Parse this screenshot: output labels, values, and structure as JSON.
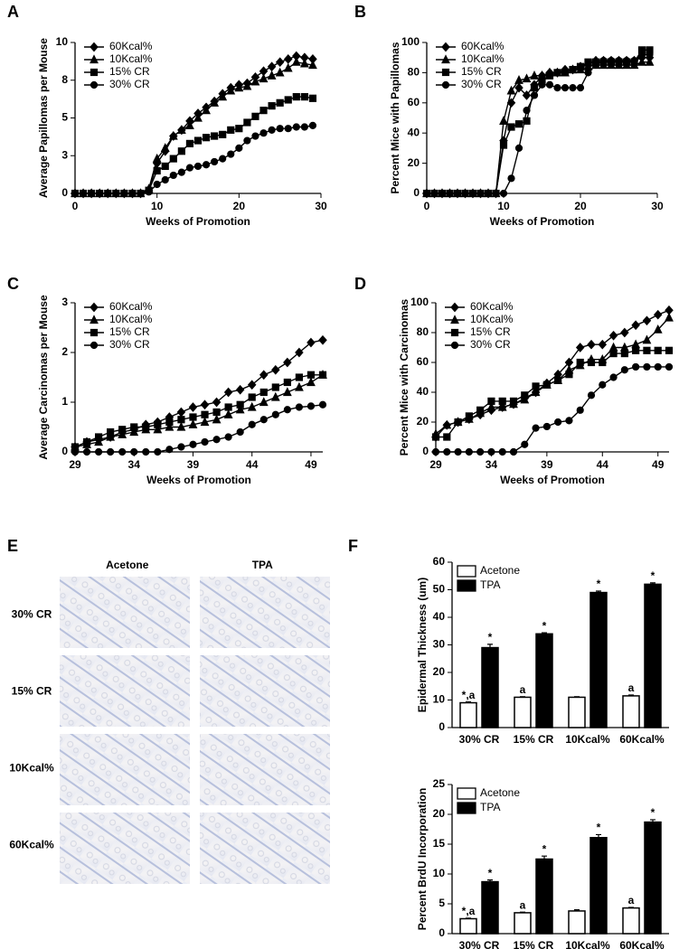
{
  "chart_data": [
    {
      "type": "line",
      "panel": "A",
      "x_label": "Weeks of Promotion",
      "y_label": "Average Papillomas per Mouse",
      "x": [
        0,
        1,
        2,
        3,
        4,
        5,
        6,
        7,
        8,
        9,
        10,
        11,
        12,
        13,
        14,
        15,
        16,
        17,
        18,
        19,
        20,
        21,
        22,
        23,
        24,
        25,
        26,
        27,
        28,
        29
      ],
      "xlim": [
        0,
        30
      ],
      "xticks": [
        0,
        10,
        20,
        30
      ],
      "ylim": [
        0,
        10
      ],
      "yticks": [
        0,
        {
          "value": 2.5,
          "label": "3"
        },
        5,
        {
          "value": 7.5,
          "label": "8"
        },
        10
      ],
      "series": [
        {
          "name": "60Kcal%",
          "color": "#000000",
          "marker": "diamond",
          "values": [
            0,
            0,
            0,
            0,
            0,
            0,
            0,
            0,
            0,
            0.2,
            2.0,
            2.8,
            3.8,
            4.2,
            4.8,
            5.3,
            5.7,
            6.1,
            6.6,
            7.0,
            7.2,
            7.3,
            7.7,
            8.1,
            8.4,
            8.7,
            8.9,
            9.1,
            9.0,
            8.9
          ]
        },
        {
          "name": "10Kcal%",
          "color": "#000000",
          "marker": "triangle",
          "values": [
            0,
            0,
            0,
            0,
            0,
            0,
            0,
            0,
            0,
            0.3,
            2.3,
            3.0,
            3.8,
            4.2,
            4.5,
            5.0,
            5.5,
            6.0,
            6.4,
            6.8,
            7.0,
            7.1,
            7.4,
            7.6,
            7.8,
            8.0,
            8.3,
            8.7,
            8.6,
            8.5
          ]
        },
        {
          "name": "15% CR",
          "color": "#000000",
          "marker": "square",
          "values": [
            0,
            0,
            0,
            0,
            0,
            0,
            0,
            0,
            0,
            0.2,
            1.5,
            1.8,
            2.3,
            2.8,
            3.3,
            3.5,
            3.7,
            3.8,
            3.9,
            4.2,
            4.3,
            4.7,
            5.1,
            5.5,
            5.8,
            6.0,
            6.2,
            6.4,
            6.4,
            6.3
          ]
        },
        {
          "name": "30% CR",
          "color": "#000000",
          "marker": "circle",
          "values": [
            0,
            0,
            0,
            0,
            0,
            0,
            0,
            0,
            0,
            0.1,
            0.6,
            0.9,
            1.2,
            1.4,
            1.7,
            1.8,
            1.9,
            2.1,
            2.3,
            2.6,
            3.0,
            3.5,
            3.8,
            4.0,
            4.2,
            4.3,
            4.3,
            4.4,
            4.4,
            4.5
          ]
        }
      ]
    },
    {
      "type": "line",
      "panel": "B",
      "x_label": "Weeks of Promotion",
      "y_label": "Percent Mice with Papillomas",
      "x": [
        0,
        1,
        2,
        3,
        4,
        5,
        6,
        7,
        8,
        9,
        10,
        11,
        12,
        13,
        14,
        15,
        16,
        17,
        18,
        19,
        20,
        21,
        22,
        23,
        24,
        25,
        26,
        27,
        28,
        29
      ],
      "xlim": [
        0,
        30
      ],
      "xticks": [
        0,
        10,
        20,
        30
      ],
      "ylim": [
        0,
        100
      ],
      "yticks": [
        0,
        20,
        40,
        60,
        80,
        100
      ],
      "series": [
        {
          "name": "60Kcal%",
          "color": "#000000",
          "marker": "diamond",
          "values": [
            0,
            0,
            0,
            0,
            0,
            0,
            0,
            0,
            0,
            0,
            35,
            60,
            70,
            65,
            72,
            78,
            80,
            80,
            82,
            82,
            84,
            85,
            88,
            88,
            88,
            88,
            88,
            88,
            90,
            90
          ]
        },
        {
          "name": "10Kcal%",
          "color": "#000000",
          "marker": "triangle",
          "values": [
            0,
            0,
            0,
            0,
            0,
            0,
            0,
            0,
            0,
            0,
            48,
            68,
            75,
            76,
            78,
            78,
            80,
            80,
            80,
            82,
            82,
            84,
            85,
            85,
            85,
            85,
            85,
            85,
            87,
            87
          ]
        },
        {
          "name": "15% CR",
          "color": "#000000",
          "marker": "square",
          "values": [
            0,
            0,
            0,
            0,
            0,
            0,
            0,
            0,
            0,
            0,
            32,
            44,
            46,
            48,
            70,
            75,
            78,
            80,
            80,
            82,
            84,
            87,
            87,
            87,
            87,
            87,
            87,
            87,
            95,
            95
          ]
        },
        {
          "name": "30% CR",
          "color": "#000000",
          "marker": "circle",
          "values": [
            0,
            0,
            0,
            0,
            0,
            0,
            0,
            0,
            0,
            0,
            0,
            10,
            30,
            55,
            65,
            72,
            72,
            70,
            70,
            70,
            70,
            80,
            85,
            88,
            88,
            88,
            88,
            88,
            92,
            92
          ]
        }
      ]
    },
    {
      "type": "line",
      "panel": "C",
      "x_label": "Weeks of Promotion",
      "y_label": "Average Carcinomas per Mouse",
      "x": [
        29,
        30,
        31,
        32,
        33,
        34,
        35,
        36,
        37,
        38,
        39,
        40,
        41,
        42,
        43,
        44,
        45,
        46,
        47,
        48,
        49,
        50
      ],
      "xlim": [
        29,
        50
      ],
      "xticks": [
        29,
        34,
        39,
        44,
        49
      ],
      "ylim": [
        0,
        3
      ],
      "yticks": [
        0,
        1,
        2,
        3
      ],
      "series": [
        {
          "name": "60Kcal%",
          "color": "#000000",
          "marker": "diamond",
          "values": [
            0.1,
            0.2,
            0.25,
            0.3,
            0.4,
            0.45,
            0.55,
            0.6,
            0.7,
            0.8,
            0.9,
            0.95,
            1.0,
            1.2,
            1.25,
            1.35,
            1.55,
            1.65,
            1.8,
            2.0,
            2.2,
            2.25
          ]
        },
        {
          "name": "10Kcal%",
          "color": "#000000",
          "marker": "triangle",
          "values": [
            0.1,
            0.15,
            0.2,
            0.3,
            0.35,
            0.4,
            0.45,
            0.45,
            0.5,
            0.5,
            0.55,
            0.6,
            0.65,
            0.75,
            0.85,
            0.9,
            1.0,
            1.1,
            1.2,
            1.3,
            1.4,
            1.55
          ]
        },
        {
          "name": "15% CR",
          "color": "#000000",
          "marker": "square",
          "values": [
            0.1,
            0.2,
            0.3,
            0.4,
            0.45,
            0.5,
            0.5,
            0.55,
            0.6,
            0.65,
            0.7,
            0.75,
            0.8,
            0.9,
            0.95,
            1.1,
            1.2,
            1.3,
            1.4,
            1.5,
            1.55,
            1.55
          ]
        },
        {
          "name": "30% CR",
          "color": "#000000",
          "marker": "circle",
          "values": [
            0,
            0,
            0,
            0,
            0,
            0,
            0,
            0,
            0.05,
            0.1,
            0.15,
            0.2,
            0.25,
            0.3,
            0.4,
            0.55,
            0.65,
            0.75,
            0.85,
            0.9,
            0.92,
            0.95
          ]
        }
      ]
    },
    {
      "type": "line",
      "panel": "D",
      "x_label": "Weeks of Promotion",
      "y_label": "Percent Mice with Carcinomas",
      "x": [
        29,
        30,
        31,
        32,
        33,
        34,
        35,
        36,
        37,
        38,
        39,
        40,
        41,
        42,
        43,
        44,
        45,
        46,
        47,
        48,
        49,
        50
      ],
      "xlim": [
        29,
        50
      ],
      "xticks": [
        29,
        34,
        39,
        44,
        49
      ],
      "ylim": [
        0,
        100
      ],
      "yticks": [
        0,
        20,
        40,
        60,
        80,
        100
      ],
      "series": [
        {
          "name": "60Kcal%",
          "color": "#000000",
          "marker": "diamond",
          "values": [
            10,
            18,
            20,
            22,
            25,
            28,
            30,
            32,
            36,
            40,
            46,
            52,
            60,
            70,
            72,
            72,
            78,
            80,
            85,
            88,
            92,
            95
          ]
        },
        {
          "name": "10Kcal%",
          "color": "#000000",
          "marker": "triangle",
          "values": [
            12,
            18,
            20,
            22,
            26,
            30,
            30,
            32,
            35,
            40,
            45,
            48,
            55,
            58,
            62,
            62,
            70,
            70,
            72,
            75,
            82,
            90
          ]
        },
        {
          "name": "15% CR",
          "color": "#000000",
          "marker": "square",
          "values": [
            10,
            10,
            20,
            24,
            28,
            34,
            34,
            34,
            38,
            44,
            45,
            48,
            52,
            60,
            60,
            60,
            66,
            66,
            68,
            68,
            68,
            68
          ]
        },
        {
          "name": "30% CR",
          "color": "#000000",
          "marker": "circle",
          "values": [
            0,
            0,
            0,
            0,
            0,
            0,
            0,
            0,
            5,
            16,
            17,
            20,
            21,
            28,
            38,
            45,
            50,
            55,
            57,
            57,
            57,
            57
          ]
        }
      ]
    },
    {
      "type": "image-grid",
      "panel": "E",
      "columns": [
        "Acetone",
        "TPA"
      ],
      "rows": [
        "30% CR",
        "15% CR",
        "10Kcal%",
        "60Kcal%"
      ]
    },
    {
      "type": "bar",
      "panel": "F",
      "y_label": "Epidermal Thickness (um)",
      "categories": [
        "30% CR",
        "15% CR",
        "10Kcal%",
        "60Kcal%"
      ],
      "ylim": [
        0,
        60
      ],
      "yticks": [
        0,
        10,
        20,
        30,
        40,
        50,
        60
      ],
      "series": [
        {
          "name": "Acetone",
          "color": "#ffffff",
          "values": [
            9,
            11,
            11,
            11.5
          ],
          "errors": [
            0.3,
            0.2,
            0.2,
            0.3
          ],
          "annotations": [
            "*,a",
            "a",
            null,
            "a"
          ]
        },
        {
          "name": "TPA",
          "color": "#000000",
          "values": [
            29,
            34,
            49,
            52
          ],
          "errors": [
            1.2,
            0.4,
            0.5,
            0.5
          ],
          "annotations": [
            "*",
            "*",
            "*",
            "*"
          ]
        }
      ]
    },
    {
      "type": "bar",
      "y_label": "Percent BrdU Incorporation",
      "categories": [
        "30% CR",
        "15% CR",
        "10Kcal%",
        "60Kcal%"
      ],
      "ylim": [
        0,
        25
      ],
      "yticks": [
        0,
        5,
        10,
        15,
        20,
        25
      ],
      "series": [
        {
          "name": "Acetone",
          "color": "#ffffff",
          "values": [
            2.5,
            3.5,
            3.8,
            4.3
          ],
          "errors": [
            0.1,
            0.1,
            0.2,
            0.1
          ],
          "annotations": [
            "*,a",
            "a",
            null,
            "a"
          ]
        },
        {
          "name": "TPA",
          "color": "#000000",
          "values": [
            8.7,
            12.5,
            16.1,
            18.7
          ],
          "errors": [
            0.3,
            0.5,
            0.5,
            0.4
          ],
          "annotations": [
            "*",
            "*",
            "*",
            "*"
          ]
        }
      ]
    }
  ]
}
